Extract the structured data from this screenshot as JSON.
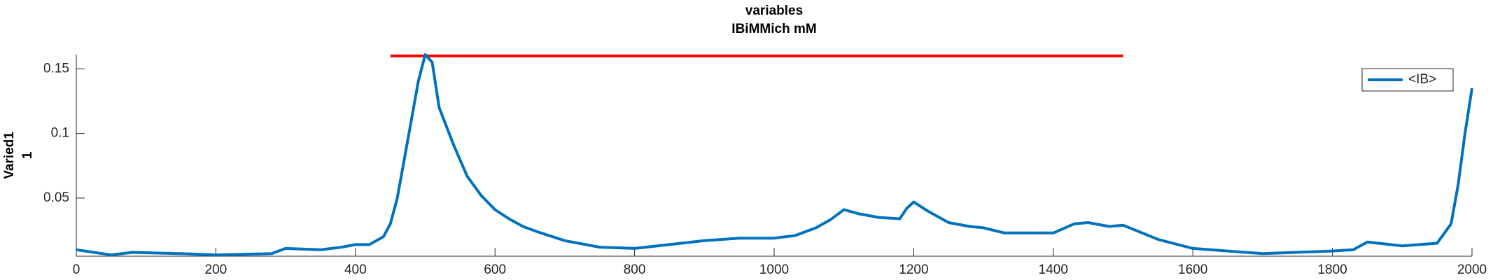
{
  "chart_data": {
    "type": "line",
    "title": [
      "variables",
      "IBiMMich mM"
    ],
    "ylabel": [
      "Varied1",
      "1"
    ],
    "x": [
      0,
      50,
      80,
      150,
      200,
      280,
      300,
      350,
      380,
      400,
      420,
      440,
      450,
      460,
      470,
      480,
      490,
      500,
      510,
      520,
      540,
      560,
      580,
      600,
      620,
      640,
      660,
      700,
      750,
      800,
      850,
      900,
      950,
      1000,
      1030,
      1060,
      1080,
      1100,
      1120,
      1150,
      1180,
      1190,
      1200,
      1220,
      1250,
      1280,
      1300,
      1330,
      1360,
      1400,
      1430,
      1450,
      1480,
      1500,
      1550,
      1600,
      1700,
      1800,
      1830,
      1850,
      1900,
      1950,
      1970,
      1980,
      1990,
      2000
    ],
    "series": [
      {
        "name": "<IB>",
        "color": "#0072bd",
        "values": [
          0.01,
          0.006,
          0.008,
          0.007,
          0.006,
          0.007,
          0.011,
          0.01,
          0.012,
          0.014,
          0.014,
          0.02,
          0.03,
          0.05,
          0.08,
          0.11,
          0.14,
          0.161,
          0.155,
          0.12,
          0.092,
          0.067,
          0.052,
          0.041,
          0.034,
          0.028,
          0.024,
          0.017,
          0.012,
          0.011,
          0.014,
          0.017,
          0.019,
          0.019,
          0.021,
          0.027,
          0.033,
          0.041,
          0.038,
          0.035,
          0.034,
          0.042,
          0.047,
          0.04,
          0.031,
          0.028,
          0.027,
          0.023,
          0.023,
          0.023,
          0.03,
          0.031,
          0.028,
          0.029,
          0.018,
          0.011,
          0.007,
          0.009,
          0.01,
          0.016,
          0.013,
          0.015,
          0.03,
          0.06,
          0.1,
          0.135
        ]
      }
    ],
    "hline": {
      "y": 0.16,
      "x": [
        450,
        1500
      ],
      "color": "#ff0000"
    },
    "xlim": [
      0,
      2000
    ],
    "xticks": [
      0,
      200,
      400,
      600,
      800,
      1000,
      1200,
      1400,
      1600,
      1800,
      2000
    ],
    "ylim": [
      0.005,
      0.161
    ],
    "yticks": [
      0.05,
      0.1,
      0.15
    ],
    "legend": "northeast"
  }
}
